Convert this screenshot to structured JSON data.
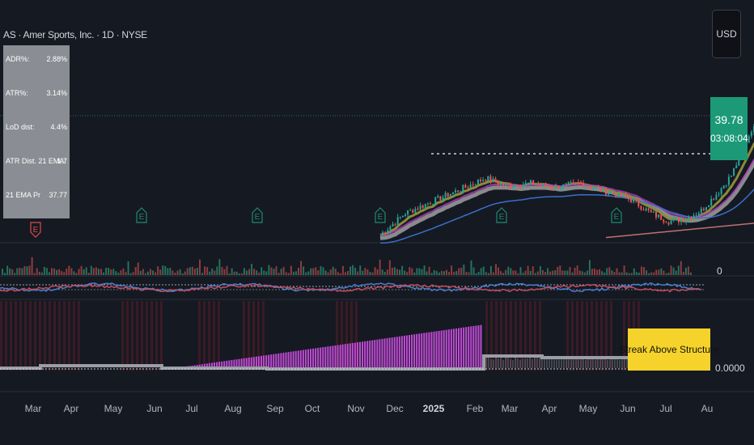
{
  "chart_title": "AS · Amer Sports, Inc. · 1D · NYSE",
  "stats_table": {
    "rows": [
      {
        "label": "ADR%:",
        "value": "2.88%"
      },
      {
        "label": "ATR%:",
        "value": "3.14%"
      },
      {
        "label": "LoD dist:",
        "value": "4.4%"
      },
      {
        "label": "ATR Dist. 21 EMA:",
        "value": "1.7"
      },
      {
        "label": "21 EMA Pr",
        "value": "37.77"
      }
    ]
  },
  "currency_button": "USD",
  "last_price": "39.78",
  "countdown": "03:08:04",
  "volume_axis_label": "0",
  "oscillator_value": "0.0000",
  "streak_label": "Streak Above Structure",
  "earnings_marker_letter": "E",
  "months": [
    "Mar",
    "Apr",
    "May",
    "Jun",
    "Jul",
    "Aug",
    "Sep",
    "Oct",
    "Nov",
    "Dec",
    "2025",
    "Feb",
    "Mar",
    "Apr",
    "May",
    "Jun",
    "Jul",
    "Au"
  ],
  "colors": {
    "background": "#151922",
    "up": "#26a69a",
    "down": "#ef5350",
    "ema_fast": "#8b8b3a",
    "ema_slow": "#a8a8a8",
    "sma_blue": "#3b6fc9",
    "sma_red": "#c07070",
    "osc_bar": "#c04bd6",
    "streak_bg": "#f6d32a",
    "price_box": "#1c9a78"
  },
  "chart_data": {
    "type": "candlestick",
    "title": "AS · Amer Sports, Inc. · 1D · NYSE",
    "x_tick_labels": [
      "Mar",
      "Apr",
      "May",
      "Jun",
      "Jul",
      "Aug",
      "Sep",
      "Oct",
      "Nov",
      "Dec",
      "2025",
      "Feb",
      "Mar",
      "Apr",
      "May",
      "Jun",
      "Jul",
      "Au"
    ],
    "last_price": 39.78,
    "twentyone_ema_price": 37.77,
    "price_path_approx": [
      {
        "x": "Nov",
        "y": 20
      },
      {
        "x": "Dec",
        "y": 27
      },
      {
        "x": "2025",
        "y": 30
      },
      {
        "x": "Feb",
        "y": 29
      },
      {
        "x": "Mar",
        "y": 27
      },
      {
        "x": "Apr",
        "y": 22
      },
      {
        "x": "May",
        "y": 26
      },
      {
        "x": "Jun",
        "y": 37
      },
      {
        "x": "Jul",
        "y": 39.78
      }
    ],
    "earnings_markers": [
      "May",
      "Aug",
      "Nov",
      "Mar",
      "May"
    ],
    "grid": false
  }
}
